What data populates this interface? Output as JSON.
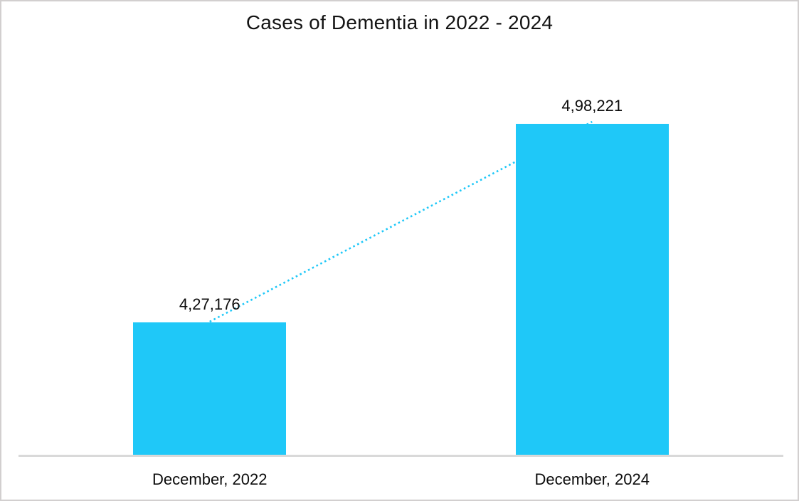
{
  "window": {
    "background_color": "#ffffff",
    "border_color": "#d2cfcf"
  },
  "chart_data": {
    "type": "bar",
    "title": "Cases of Dementia in 2022 - 2024",
    "categories": [
      "December, 2022",
      "December, 2024"
    ],
    "values": [
      427176,
      498221
    ],
    "data_labels": [
      "4,27,176",
      "4,98,221"
    ],
    "xlabel": "",
    "ylabel": "",
    "ylim": [
      380000,
      520000
    ],
    "y_axis_visible": false,
    "gridlines": false,
    "legend_position": "none",
    "bar_color": "#1fc8f8",
    "axis_line_color": "#d9d9d9",
    "data_label_color": "#0c0c0c",
    "trendline": {
      "style": "dotted",
      "color": "#1fc8f8",
      "from_category": "December, 2022",
      "to_category": "December, 2024",
      "connects": "bar tops"
    }
  }
}
